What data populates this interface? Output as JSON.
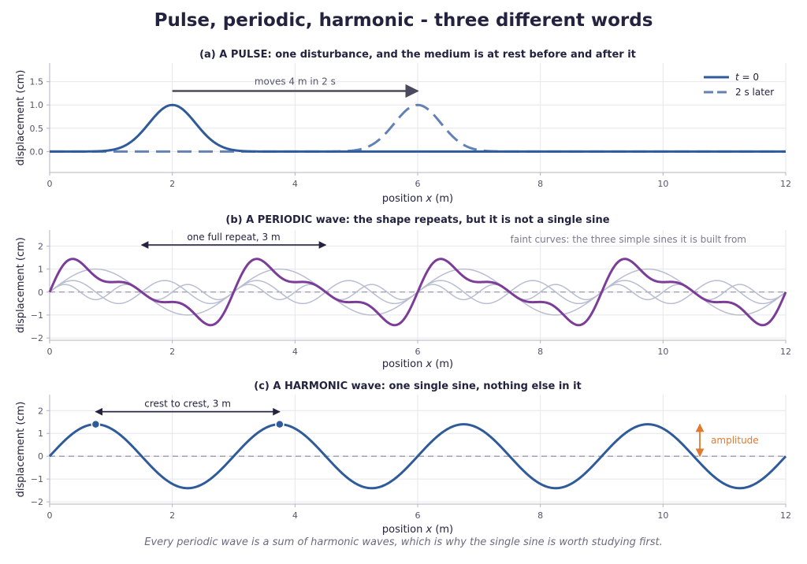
{
  "title": "Pulse, periodic, harmonic - three different words",
  "footnote": "Every periodic wave is a sum of harmonic waves, which is why the single sine is worth studying first.",
  "colors": {
    "text": "#23233f",
    "grid": "#e6e6ec",
    "axis": "#b3b3c2",
    "tick_text": "#55556a",
    "pulse": "#2f5b9a",
    "pulse_later": "#6382b4",
    "arrow_dark": "#4a4a5e",
    "periodic": "#7b3d97",
    "components": "#b9bdd2",
    "harmonic": "#2f5b9a",
    "amplitude": "#e07a2f",
    "zero_line": "#9a9aae",
    "note": "#7a7a8e"
  },
  "chart_data": [
    {
      "type": "line",
      "title": "(a)  A PULSE:  one disturbance, and the medium is at rest before and after it",
      "xlabel_pre": "position  ",
      "xlabel_var": "x",
      "xlabel_post": "  (m)",
      "ylabel": "displacement  (cm)",
      "xlim": [
        0,
        12
      ],
      "ylim": [
        -0.45,
        1.9
      ],
      "xticks": [
        0,
        2,
        4,
        6,
        8,
        10,
        12
      ],
      "xtick_labels": [
        "0",
        "2",
        "4",
        "6",
        "8",
        "10",
        "12"
      ],
      "yticks": [
        0,
        0.5,
        1.0,
        1.5
      ],
      "ytick_labels": [
        "0.0",
        "0.5",
        "1.0",
        "1.5"
      ],
      "grid": true,
      "legend_position": "top-right",
      "legend": [
        {
          "label_var": "t",
          "label_post": " = 0"
        },
        {
          "label": "2 s later"
        }
      ],
      "series": [
        {
          "center": 2,
          "amplitude": 1.0,
          "sigma": 0.38,
          "style": "solid"
        },
        {
          "center": 6,
          "amplitude": 1.0,
          "sigma": 0.38,
          "style": "dashed"
        }
      ],
      "annotation": {
        "text": "moves 4 m in 2 s",
        "from_x": 2,
        "to_x": 6,
        "y": 1.3
      }
    },
    {
      "type": "line",
      "title": "(b)  A PERIODIC wave:  the shape repeats, but it is not a single sine",
      "xlabel_pre": "position  ",
      "xlabel_var": "x",
      "xlabel_post": "  (m)",
      "ylabel": "displacement  (cm)",
      "xlim": [
        0,
        12
      ],
      "ylim": [
        -2.1,
        2.7
      ],
      "xticks": [
        0,
        2,
        4,
        6,
        8,
        10,
        12
      ],
      "xtick_labels": [
        "0",
        "2",
        "4",
        "6",
        "8",
        "10",
        "12"
      ],
      "yticks": [
        -2,
        -1,
        0,
        1,
        2
      ],
      "ytick_labels": [
        "−2",
        "−1",
        "0",
        "1",
        "2"
      ],
      "grid": true,
      "period": 3,
      "components": [
        {
          "harmonic": 1,
          "amplitude": 1.0
        },
        {
          "harmonic": 2,
          "amplitude": 0.5
        },
        {
          "harmonic": 3,
          "amplitude": 0.33
        }
      ],
      "annotation": {
        "text": "one full repeat, 3 m",
        "from_x": 1.5,
        "to_x": 4.5,
        "y": 2.05
      },
      "note": "faint curves: the three simple sines it is built from"
    },
    {
      "type": "line",
      "title": "(c)  A HARMONIC wave:  one single sine, nothing else in it",
      "xlabel_pre": "position  ",
      "xlabel_var": "x",
      "xlabel_post": "  (m)",
      "ylabel": "displacement  (cm)",
      "xlim": [
        0,
        12
      ],
      "ylim": [
        -2.1,
        2.7
      ],
      "xticks": [
        0,
        2,
        4,
        6,
        8,
        10,
        12
      ],
      "xtick_labels": [
        "0",
        "2",
        "4",
        "6",
        "8",
        "10",
        "12"
      ],
      "yticks": [
        -2,
        -1,
        0,
        1,
        2
      ],
      "ytick_labels": [
        "−2",
        "−1",
        "0",
        "1",
        "2"
      ],
      "grid": true,
      "wavelength": 3,
      "amplitude": 1.4,
      "crest_markers": [
        0.75,
        3.75
      ],
      "annotation": {
        "text": "crest to crest, 3 m",
        "from_x": 0.75,
        "to_x": 3.75,
        "y": 1.95
      },
      "amplitude_marker": {
        "text": "amplitude",
        "x": 10.6,
        "from_y": 0,
        "to_y": 1.4
      }
    }
  ]
}
